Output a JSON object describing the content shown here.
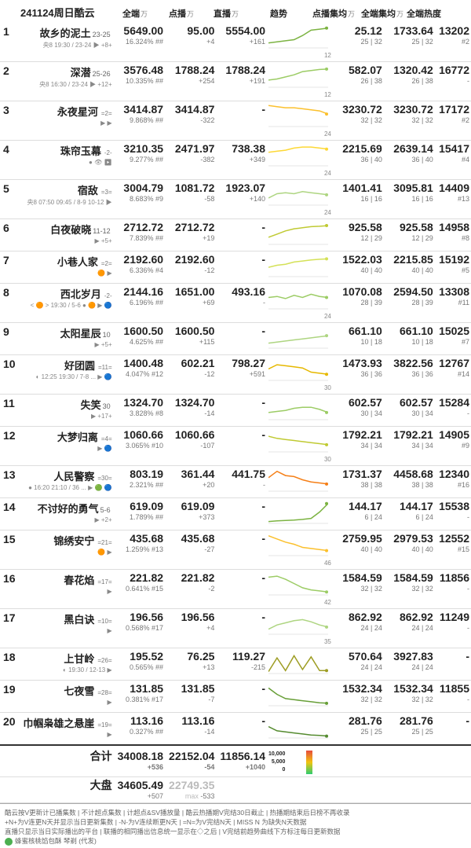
{
  "header": {
    "title": "241124周日酷云",
    "columns": {
      "all": "全端",
      "vod": "点播",
      "live": "直播",
      "trend": "趋势",
      "vodavg": "点播集均",
      "allavg": "全端集均",
      "heat": "全端热度"
    },
    "unit": "万"
  },
  "legend": {
    "top": "10,000",
    "mid": "5,000",
    "bot": "0"
  },
  "rows": [
    {
      "rank": 1,
      "title": "故乡的泥土",
      "ep": "23-25",
      "subline": "央8 19:30 / 23-24 ▶ +8+",
      "eq": "",
      "all": "5649.00",
      "all_sub": "16.324% ##",
      "vod": "95.00",
      "vod_sub": "+4",
      "live": "5554.00",
      "live_sub": "+161",
      "trend": [
        0.2,
        0.25,
        0.3,
        0.35,
        0.55,
        0.8,
        0.85,
        0.9
      ],
      "trend_color": "#7cb342",
      "trend_tag": "12",
      "vodavg": "25.12",
      "vodavg_sub": "25 | 32",
      "allavg": "1733.64",
      "allavg_sub": "25 | 32",
      "heat": "13202",
      "heat_sub": "#2"
    },
    {
      "rank": 2,
      "title": "深潜",
      "ep": "25-26",
      "subline": "央8 16:30 / 23-24 ▶ +12+",
      "eq": "",
      "all": "3576.48",
      "all_sub": "10.335% ##",
      "vod": "1788.24",
      "vod_sub": "+254",
      "live": "1788.24",
      "live_sub": "+191",
      "trend": [
        0.3,
        0.35,
        0.45,
        0.55,
        0.7,
        0.75,
        0.8,
        0.82
      ],
      "trend_color": "#9ccc65",
      "trend_tag": "12",
      "vodavg": "582.07",
      "vodavg_sub": "26 | 38",
      "allavg": "1320.42",
      "allavg_sub": "26 | 38",
      "heat": "16772",
      "heat_sub": "-"
    },
    {
      "rank": 3,
      "title": "永夜星河",
      "ep": "",
      "subline": "▶ ▶",
      "eq": "=2=",
      "all": "3414.87",
      "all_sub": "9.868% ##",
      "vod": "3414.87",
      "vod_sub": "-322",
      "live": "-",
      "live_sub": "",
      "trend": [
        0.95,
        0.9,
        0.85,
        0.85,
        0.8,
        0.75,
        0.7,
        0.55
      ],
      "trend_color": "#fbc02d",
      "trend_tag": "24",
      "vodavg": "3230.72",
      "vodavg_sub": "32 | 32",
      "allavg": "3230.72",
      "allavg_sub": "32 | 32",
      "heat": "17172",
      "heat_sub": "#2"
    },
    {
      "rank": 4,
      "title": "珠帘玉幕",
      "ep": "",
      "subline": "● 👁 ▶",
      "eq": "-2-",
      "all": "3210.35",
      "all_sub": "9.277% ##",
      "vod": "2471.97",
      "vod_sub": "-382",
      "live": "738.38",
      "live_sub": "+349",
      "trend": [
        0.6,
        0.65,
        0.7,
        0.8,
        0.85,
        0.85,
        0.8,
        0.75
      ],
      "trend_color": "#fdd835",
      "trend_tag": "24",
      "vodavg": "2215.69",
      "vodavg_sub": "36 | 40",
      "allavg": "2639.14",
      "allavg_sub": "36 | 40",
      "heat": "15417",
      "heat_sub": "#4"
    },
    {
      "rank": 5,
      "title": "宿敌",
      "ep": "",
      "subline": "央8 07:50 09:45 / 8-9 10-12 ▶",
      "eq": "=3=",
      "all": "3004.79",
      "all_sub": "8.683% #9",
      "vod": "1081.72",
      "vod_sub": "-58",
      "live": "1923.07",
      "live_sub": "+140",
      "trend": [
        0.3,
        0.5,
        0.55,
        0.5,
        0.6,
        0.55,
        0.5,
        0.45
      ],
      "trend_color": "#aed581",
      "trend_tag": "24",
      "vodavg": "1401.41",
      "vodavg_sub": "16 | 16",
      "allavg": "3095.81",
      "allavg_sub": "16 | 16",
      "heat": "14409",
      "heat_sub": "#13"
    },
    {
      "rank": 6,
      "title": "白夜破晓",
      "ep": "11-12",
      "subline": "▶ +5+",
      "eq": "",
      "all": "2712.72",
      "all_sub": "7.839% ##",
      "vod": "2712.72",
      "vod_sub": "+19",
      "live": "-",
      "live_sub": "",
      "trend": [
        0.3,
        0.45,
        0.6,
        0.7,
        0.75,
        0.8,
        0.82,
        0.85
      ],
      "trend_color": "#c0ca33",
      "trend_tag": "",
      "vodavg": "925.58",
      "vodavg_sub": "12 | 29",
      "allavg": "925.58",
      "allavg_sub": "12 | 29",
      "heat": "14958",
      "heat_sub": "#8"
    },
    {
      "rank": 7,
      "title": "小巷人家",
      "ep": "",
      "subline": "🟠 ▶",
      "eq": "=2=",
      "all": "2192.60",
      "all_sub": "6.336% #4",
      "vod": "2192.60",
      "vod_sub": "-12",
      "live": "-",
      "live_sub": "",
      "trend": [
        0.4,
        0.5,
        0.55,
        0.65,
        0.7,
        0.75,
        0.78,
        0.8
      ],
      "trend_color": "#d4e157",
      "trend_tag": "",
      "vodavg": "1522.03",
      "vodavg_sub": "40 | 40",
      "allavg": "2215.85",
      "allavg_sub": "40 | 40",
      "heat": "15192",
      "heat_sub": "#5"
    },
    {
      "rank": 8,
      "title": "西北岁月",
      "ep": "",
      "subline": "< 🟠 > 19:30 / 5-6 ● 🟠 ▶ 🔵",
      "eq": "-2-",
      "all": "2144.16",
      "all_sub": "6.196% ##",
      "vod": "1651.00",
      "vod_sub": "+69",
      "live": "493.16",
      "live_sub": "-",
      "trend": [
        0.5,
        0.55,
        0.45,
        0.6,
        0.5,
        0.65,
        0.55,
        0.5
      ],
      "trend_color": "#9ccc65",
      "trend_tag": "24",
      "vodavg": "1070.08",
      "vodavg_sub": "28 | 39",
      "allavg": "2594.50",
      "allavg_sub": "28 | 39",
      "heat": "13308",
      "heat_sub": "#11"
    },
    {
      "rank": 9,
      "title": "太阳星辰",
      "ep": "10",
      "subline": "▶ +5+",
      "eq": "",
      "all": "1600.50",
      "all_sub": "4.625% ##",
      "vod": "1600.50",
      "vod_sub": "+115",
      "live": "-",
      "live_sub": "",
      "trend": [
        0.2,
        0.25,
        0.3,
        0.35,
        0.4,
        0.45,
        0.5,
        0.55
      ],
      "trend_color": "#aed581",
      "trend_tag": "",
      "vodavg": "661.10",
      "vodavg_sub": "10 | 18",
      "allavg": "661.10",
      "allavg_sub": "10 | 18",
      "heat": "15025",
      "heat_sub": "#7"
    },
    {
      "rank": 10,
      "title": "好团圆",
      "ep": "",
      "subline": "◐ 12:25 19:30 / 7-8 ... ▶ 🔵",
      "eq": "=11=",
      "all": "1400.48",
      "all_sub": "4.047% #12",
      "vod": "602.21",
      "vod_sub": "-12",
      "live": "798.27",
      "live_sub": "+591",
      "trend": [
        0.5,
        0.7,
        0.65,
        0.6,
        0.55,
        0.35,
        0.3,
        0.25
      ],
      "trend_color": "#e6b800",
      "trend_tag": "30",
      "vodavg": "1473.93",
      "vodavg_sub": "36 | 36",
      "allavg": "3822.56",
      "allavg_sub": "36 | 36",
      "heat": "12767",
      "heat_sub": "#14"
    },
    {
      "rank": 11,
      "title": "失笑",
      "ep": "30",
      "subline": "▶ +17+",
      "eq": "",
      "all": "1324.70",
      "all_sub": "3.828% #8",
      "vod": "1324.70",
      "vod_sub": "-14",
      "live": "-",
      "live_sub": "",
      "trend": [
        0.3,
        0.35,
        0.4,
        0.5,
        0.55,
        0.55,
        0.45,
        0.3
      ],
      "trend_color": "#9ccc65",
      "trend_tag": "",
      "vodavg": "602.57",
      "vodavg_sub": "30 | 34",
      "allavg": "602.57",
      "allavg_sub": "30 | 34",
      "heat": "15284",
      "heat_sub": "-"
    },
    {
      "rank": 12,
      "title": "大梦归离",
      "ep": "",
      "subline": "▶ 🔵",
      "eq": "=4=",
      "all": "1060.66",
      "all_sub": "3.065% #10",
      "vod": "1060.66",
      "vod_sub": "-107",
      "live": "-",
      "live_sub": "",
      "trend": [
        0.7,
        0.6,
        0.55,
        0.5,
        0.45,
        0.4,
        0.35,
        0.3
      ],
      "trend_color": "#c0ca33",
      "trend_tag": "30",
      "vodavg": "1792.21",
      "vodavg_sub": "34 | 34",
      "allavg": "1792.21",
      "allavg_sub": "34 | 34",
      "heat": "14905",
      "heat_sub": "#9"
    },
    {
      "rank": 13,
      "title": "人民警察",
      "ep": "",
      "subline": "● 16:20 21:10 / 36 ... ▶ 🟢 🔵",
      "eq": "=30=",
      "all": "803.19",
      "all_sub": "2.321% ##",
      "vod": "361.44",
      "vod_sub": "+20",
      "live": "441.75",
      "live_sub": "-",
      "trend": [
        0.6,
        0.9,
        0.7,
        0.65,
        0.5,
        0.4,
        0.35,
        0.3
      ],
      "trend_color": "#f57f17",
      "trend_tag": "",
      "vodavg": "1731.37",
      "vodavg_sub": "38 | 38",
      "allavg": "4458.68",
      "allavg_sub": "38 | 38",
      "heat": "12340",
      "heat_sub": "#16"
    },
    {
      "rank": 14,
      "title": "不讨好的勇气",
      "ep": "5-6",
      "subline": "▶ +2+",
      "eq": "",
      "all": "619.09",
      "all_sub": "1.789% ##",
      "vod": "619.09",
      "vod_sub": "+373",
      "live": "-",
      "live_sub": "",
      "trend": [
        0.05,
        0.08,
        0.1,
        0.12,
        0.15,
        0.2,
        0.5,
        0.9
      ],
      "trend_color": "#7cb342",
      "trend_tag": "",
      "vodavg": "144.17",
      "vodavg_sub": "6 | 24",
      "allavg": "144.17",
      "allavg_sub": "6 | 24",
      "heat": "15538",
      "heat_sub": "-"
    },
    {
      "rank": 15,
      "title": "锦绣安宁",
      "ep": "",
      "subline": "🟠 ▶",
      "eq": "=21=",
      "all": "435.68",
      "all_sub": "1.259% #13",
      "vod": "435.68",
      "vod_sub": "-27",
      "live": "-",
      "live_sub": "",
      "trend": [
        0.9,
        0.75,
        0.6,
        0.5,
        0.35,
        0.3,
        0.25,
        0.2
      ],
      "trend_color": "#fbc02d",
      "trend_tag": "46",
      "vodavg": "2759.95",
      "vodavg_sub": "40 | 40",
      "allavg": "2979.53",
      "allavg_sub": "40 | 40",
      "heat": "12552",
      "heat_sub": "#15"
    },
    {
      "rank": 16,
      "title": "春花焰",
      "ep": "",
      "subline": "▶",
      "eq": "=17=",
      "all": "221.82",
      "all_sub": "0.641% #15",
      "vod": "221.82",
      "vod_sub": "-2",
      "live": "-",
      "live_sub": "",
      "trend": [
        0.8,
        0.85,
        0.7,
        0.5,
        0.3,
        0.2,
        0.15,
        0.1
      ],
      "trend_color": "#9ccc65",
      "trend_tag": "42",
      "vodavg": "1584.59",
      "vodavg_sub": "32 | 32",
      "allavg": "1584.59",
      "allavg_sub": "32 | 32",
      "heat": "11856",
      "heat_sub": "-"
    },
    {
      "rank": 17,
      "title": "黑白诀",
      "ep": "",
      "subline": "▶",
      "eq": "=10=",
      "all": "196.56",
      "all_sub": "0.568% #17",
      "vod": "196.56",
      "vod_sub": "+4",
      "live": "-",
      "live_sub": "",
      "trend": [
        0.2,
        0.4,
        0.5,
        0.6,
        0.65,
        0.55,
        0.4,
        0.3
      ],
      "trend_color": "#aed581",
      "trend_tag": "35",
      "vodavg": "862.92",
      "vodavg_sub": "24 | 24",
      "allavg": "862.92",
      "allavg_sub": "24 | 24",
      "heat": "11249",
      "heat_sub": "-"
    },
    {
      "rank": 18,
      "title": "上甘岭",
      "ep": "",
      "subline": "◐ 19:30 / 12-13 ▶",
      "eq": "=26=",
      "all": "195.52",
      "all_sub": "0.565% ##",
      "vod": "76.25",
      "vod_sub": "+13",
      "live": "119.27",
      "live_sub": "-215",
      "trend": [
        0.05,
        0.7,
        0.1,
        0.8,
        0.15,
        0.75,
        0.1,
        0.1
      ],
      "trend_color": "#9e9d24",
      "trend_tag": "",
      "vodavg": "570.64",
      "vodavg_sub": "24 | 24",
      "allavg": "3927.83",
      "allavg_sub": "24 | 24",
      "heat": "-",
      "heat_sub": ""
    },
    {
      "rank": 19,
      "title": "七夜雪",
      "ep": "",
      "subline": "▶",
      "eq": "=28=",
      "all": "131.85",
      "all_sub": "0.381% #17",
      "vod": "131.85",
      "vod_sub": "-7",
      "live": "-",
      "live_sub": "",
      "trend": [
        0.8,
        0.5,
        0.3,
        0.25,
        0.2,
        0.15,
        0.1,
        0.08
      ],
      "trend_color": "#689f38",
      "trend_tag": "",
      "vodavg": "1532.34",
      "vodavg_sub": "32 | 32",
      "allavg": "1532.34",
      "allavg_sub": "32 | 32",
      "heat": "11855",
      "heat_sub": "-"
    },
    {
      "rank": 20,
      "title": "巾帼枭雄之悬崖",
      "ep": "",
      "subline": "▶",
      "eq": "=19=",
      "all": "113.16",
      "all_sub": "0.327% ##",
      "vod": "113.16",
      "vod_sub": "-14",
      "live": "-",
      "live_sub": "",
      "trend": [
        0.5,
        0.3,
        0.25,
        0.2,
        0.15,
        0.1,
        0.08,
        0.05
      ],
      "trend_color": "#558b2f",
      "trend_tag": "",
      "vodavg": "281.76",
      "vodavg_sub": "25 | 25",
      "allavg": "281.76",
      "allavg_sub": "25 | 25",
      "heat": "-",
      "heat_sub": ""
    }
  ],
  "totals": {
    "sum_label": "合计",
    "sum_all": "34008.18",
    "sum_all_sub": "+536",
    "sum_vod": "22152.04",
    "sum_vod_sub": "-54",
    "sum_live": "11856.14",
    "sum_live_sub": "+1040",
    "market_label": "大盘",
    "market_all": "34605.49",
    "market_all_sub": "+507",
    "market_vod": "22749.35",
    "market_vod_sub": "-533",
    "market_vod_note": "max"
  },
  "footer": {
    "l1": "酷云按V更新计已播集数 | 不计超点集数 | 计超点&SV播放量 | 酷云热播期V完结30日截止 | 热播期结束后日榜不再收录",
    "l2": "+N+为V连更N天并显示当日更新集数 | -N-为V连续断更N天 | =N=为V完结N天 | MISS N 为缺失N天数据",
    "l3": "直播只显示当日实际播出的平台 | 联播的相同播出信息统一显示在◇之后 | V完结前趋势曲线下方标注每日更新数据",
    "l4": "蜂蜜核桃馅包酥 琴剃 (代发)"
  }
}
